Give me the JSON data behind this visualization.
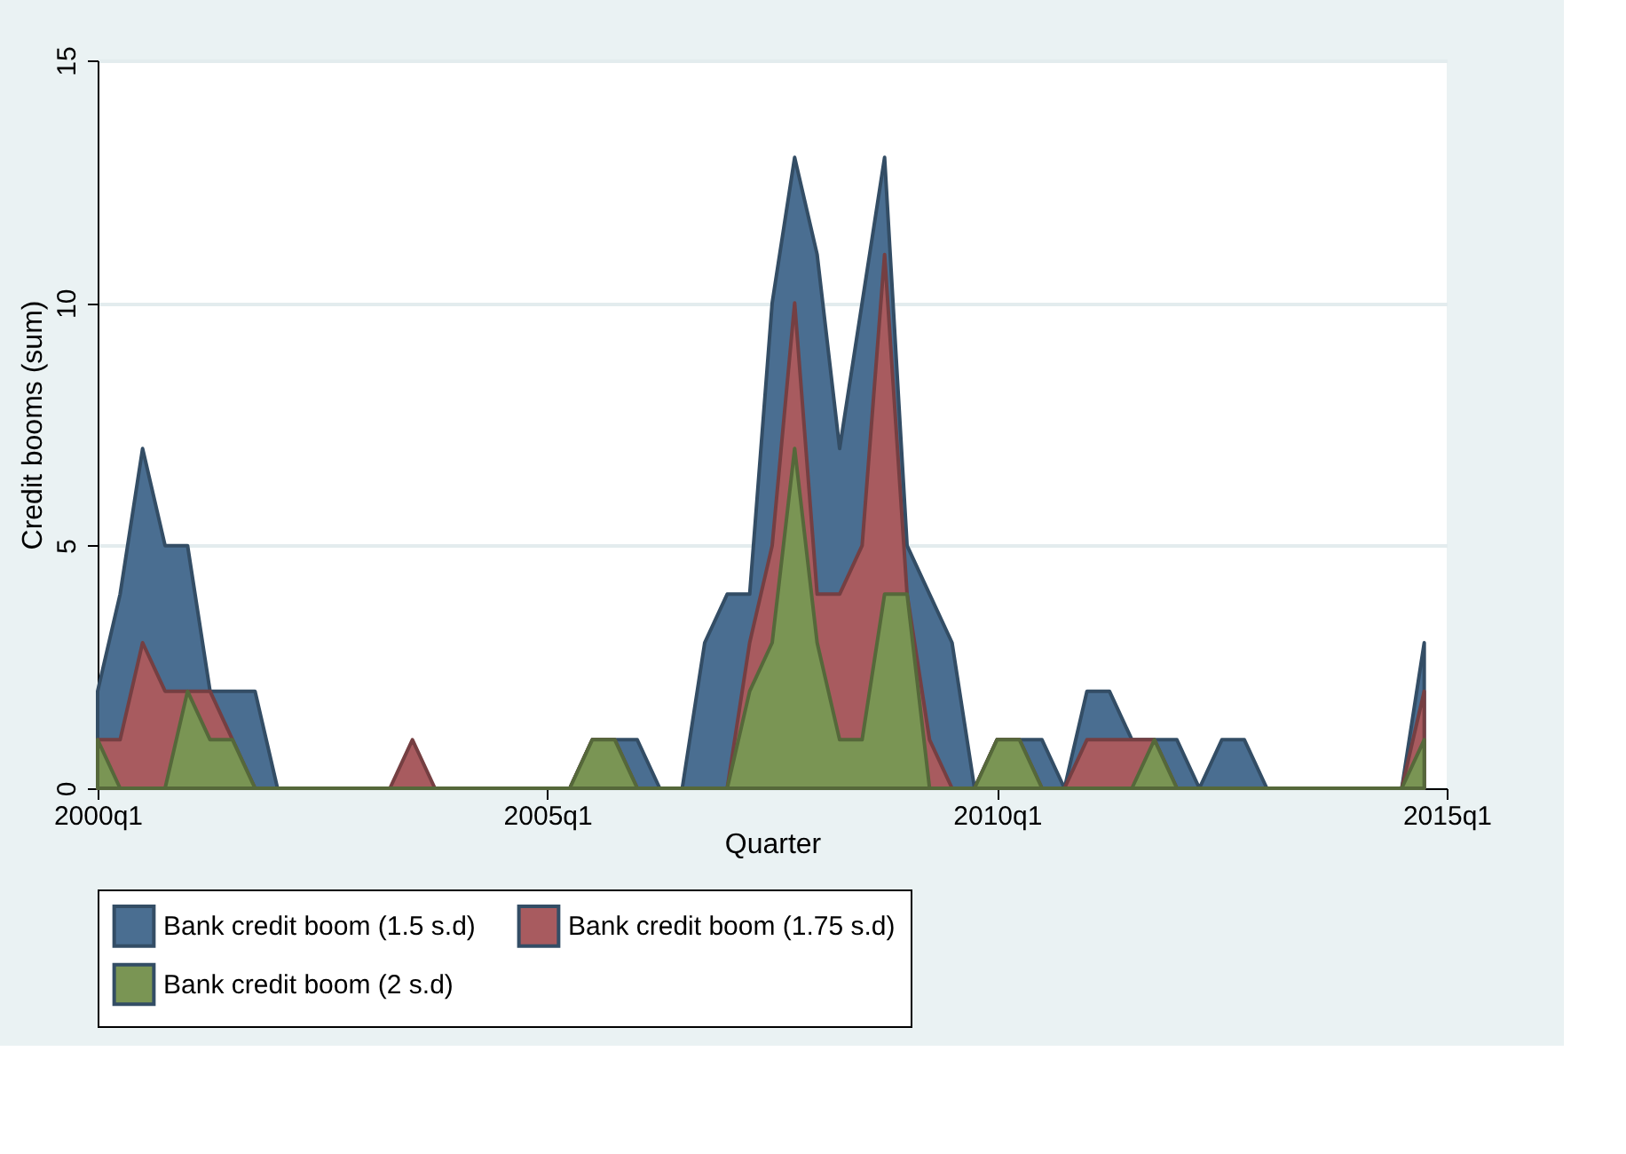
{
  "chart_data": {
    "type": "area",
    "xlabel": "Quarter",
    "ylabel": "Credit booms (sum)",
    "categories": [
      "2000q1",
      null,
      null,
      null,
      null,
      null,
      null,
      null,
      null,
      null,
      null,
      null,
      null,
      null,
      null,
      null,
      null,
      null,
      null,
      null,
      "2005q1",
      null,
      null,
      null,
      null,
      null,
      null,
      null,
      null,
      null,
      null,
      null,
      null,
      null,
      null,
      null,
      null,
      null,
      null,
      null,
      "2010q1",
      null,
      null,
      null,
      null,
      null,
      null,
      null,
      null,
      null,
      null,
      null,
      null,
      null,
      null,
      null,
      null,
      null,
      null,
      null,
      "2015q1"
    ],
    "series": [
      {
        "name": "Bank credit boom (1.5 s.d)",
        "color": "#4a6e91",
        "values": [
          2,
          4,
          7,
          5,
          5,
          2,
          2,
          2,
          0,
          0,
          0,
          0,
          0,
          0,
          0,
          0,
          0,
          0,
          0,
          0,
          0,
          0,
          1,
          1,
          1,
          0,
          0,
          3,
          4,
          4,
          10,
          13,
          11,
          7,
          10,
          13,
          5,
          4,
          3,
          0,
          1,
          1,
          1,
          0,
          2,
          2,
          1,
          1,
          1,
          0,
          1,
          1,
          0,
          0,
          0,
          0,
          0,
          0,
          0,
          3,
          null
        ]
      },
      {
        "name": "Bank credit boom (1.75 s.d)",
        "color": "#a85b5f",
        "values": [
          1,
          1,
          3,
          2,
          2,
          2,
          1,
          0,
          0,
          0,
          0,
          0,
          0,
          0,
          1,
          0,
          0,
          0,
          0,
          0,
          0,
          0,
          1,
          1,
          0,
          0,
          0,
          0,
          0,
          3,
          5,
          10,
          4,
          4,
          5,
          11,
          4,
          1,
          0,
          0,
          1,
          1,
          0,
          0,
          1,
          1,
          1,
          1,
          0,
          0,
          0,
          0,
          0,
          0,
          0,
          0,
          0,
          0,
          0,
          2,
          null
        ]
      },
      {
        "name": "Bank credit boom (2 s.d)",
        "color": "#7a9554",
        "values": [
          1,
          0,
          0,
          0,
          2,
          1,
          1,
          0,
          0,
          0,
          0,
          0,
          0,
          0,
          0,
          0,
          0,
          0,
          0,
          0,
          0,
          0,
          1,
          1,
          0,
          0,
          0,
          0,
          0,
          2,
          3,
          7,
          3,
          1,
          1,
          4,
          4,
          0,
          0,
          0,
          1,
          1,
          0,
          0,
          0,
          0,
          0,
          1,
          0,
          0,
          0,
          0,
          0,
          0,
          0,
          0,
          0,
          0,
          0,
          1,
          null
        ]
      }
    ],
    "ylim": [
      0,
      15
    ],
    "yticks": [
      0,
      5,
      10,
      15
    ],
    "grid": "y",
    "legend": "bottom"
  }
}
